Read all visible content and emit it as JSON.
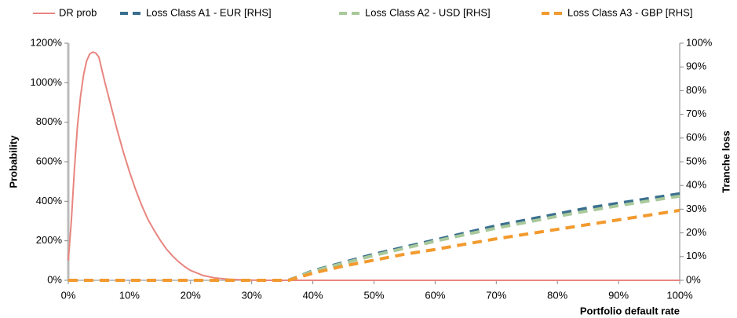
{
  "chart_data": {
    "type": "line",
    "xlabel": "Portfolio default rate",
    "ylabel": "Probability",
    "y2label": "Tranche loss",
    "x": [
      0,
      0.5,
      1,
      1.5,
      2,
      2.5,
      3,
      3.5,
      4,
      4.5,
      5,
      6,
      7,
      8,
      9,
      10,
      11,
      12,
      13,
      14,
      15,
      16,
      17,
      18,
      19,
      20,
      22,
      24,
      26,
      28,
      30,
      32,
      34,
      36,
      38,
      40,
      45,
      50,
      55,
      60,
      65,
      70,
      75,
      80,
      85,
      90,
      95,
      100
    ],
    "series": [
      {
        "name": "DR prob",
        "color": "#e8857f",
        "dashed": false,
        "values": [
          100,
          300,
          560,
          780,
          930,
          1040,
          1110,
          1145,
          1155,
          1150,
          1130,
          1000,
          880,
          760,
          650,
          550,
          460,
          380,
          310,
          255,
          205,
          160,
          125,
          95,
          70,
          50,
          25,
          12,
          6,
          3,
          1,
          0,
          0,
          0,
          0,
          0,
          0,
          0,
          0,
          0,
          0,
          0,
          0,
          0,
          0,
          0,
          0,
          0
        ]
      },
      {
        "name": "Loss Class A1 - EUR [RHS]",
        "color": "#3a6f8f",
        "dashed": true,
        "axis": "y2",
        "values": [
          0,
          0,
          0,
          0,
          0,
          0,
          0,
          0,
          0,
          0,
          0,
          0,
          0,
          0,
          0,
          0,
          0,
          0,
          0,
          0,
          0,
          0,
          0,
          0,
          0,
          0,
          0,
          0,
          0,
          0,
          0,
          0,
          0,
          0,
          2,
          4,
          7.5,
          11,
          14,
          17,
          20,
          23,
          25.5,
          28,
          30.5,
          32.5,
          34.5,
          36.5
        ]
      },
      {
        "name": "Loss Class A2 - USD [RHS]",
        "color": "#a9c99b",
        "dashed": true,
        "axis": "y2",
        "values": [
          0,
          0,
          0,
          0,
          0,
          0,
          0,
          0,
          0,
          0,
          0,
          0,
          0,
          0,
          0,
          0,
          0,
          0,
          0,
          0,
          0,
          0,
          0,
          0,
          0,
          0,
          0,
          0,
          0,
          0,
          0,
          0,
          0,
          0,
          1.9,
          3.8,
          7.2,
          10.5,
          13.5,
          16.5,
          19.3,
          22,
          24.5,
          27,
          29.3,
          31.5,
          33.5,
          35.5
        ]
      },
      {
        "name": "Loss Class A3 - GBP [RHS]",
        "color": "#f29a2e",
        "dashed": true,
        "axis": "y2",
        "values": [
          0,
          0,
          0,
          0,
          0,
          0,
          0,
          0,
          0,
          0,
          0,
          0,
          0,
          0,
          0,
          0,
          0,
          0,
          0,
          0,
          0,
          0,
          0,
          0,
          0,
          0,
          0,
          0,
          0,
          0,
          0,
          0,
          0,
          0,
          1.5,
          3,
          6,
          8.5,
          11,
          13,
          15.3,
          17.5,
          19.5,
          21.5,
          23.5,
          25.5,
          27.5,
          29.5
        ]
      }
    ],
    "xlim": [
      0,
      100
    ],
    "xticks": [
      {
        "value": 0,
        "label": "0%"
      },
      {
        "value": 10,
        "label": "10%"
      },
      {
        "value": 20,
        "label": "20%"
      },
      {
        "value": 30,
        "label": "30%"
      },
      {
        "value": 40,
        "label": "40%"
      },
      {
        "value": 50,
        "label": "50%"
      },
      {
        "value": 60,
        "label": "60%"
      },
      {
        "value": 70,
        "label": "70%"
      },
      {
        "value": 80,
        "label": "80%"
      },
      {
        "value": 90,
        "label": "90%"
      },
      {
        "value": 100,
        "label": "100%"
      }
    ],
    "ylim": [
      0,
      1200
    ],
    "yticks": [
      {
        "value": 0,
        "label": "0%"
      },
      {
        "value": 200,
        "label": "200%"
      },
      {
        "value": 400,
        "label": "400%"
      },
      {
        "value": 600,
        "label": "600%"
      },
      {
        "value": 800,
        "label": "800%"
      },
      {
        "value": 1000,
        "label": "1000%"
      },
      {
        "value": 1200,
        "label": "1200%"
      }
    ],
    "y2lim": [
      0,
      100
    ],
    "y2ticks": [
      {
        "value": 0,
        "label": "0%"
      },
      {
        "value": 10,
        "label": "10%"
      },
      {
        "value": 20,
        "label": "20%"
      },
      {
        "value": 30,
        "label": "30%"
      },
      {
        "value": 40,
        "label": "40%"
      },
      {
        "value": 50,
        "label": "50%"
      },
      {
        "value": 60,
        "label": "60%"
      },
      {
        "value": 70,
        "label": "70%"
      },
      {
        "value": 80,
        "label": "80%"
      },
      {
        "value": 90,
        "label": "90%"
      },
      {
        "value": 100,
        "label": "100%"
      }
    ],
    "legend": "top"
  }
}
